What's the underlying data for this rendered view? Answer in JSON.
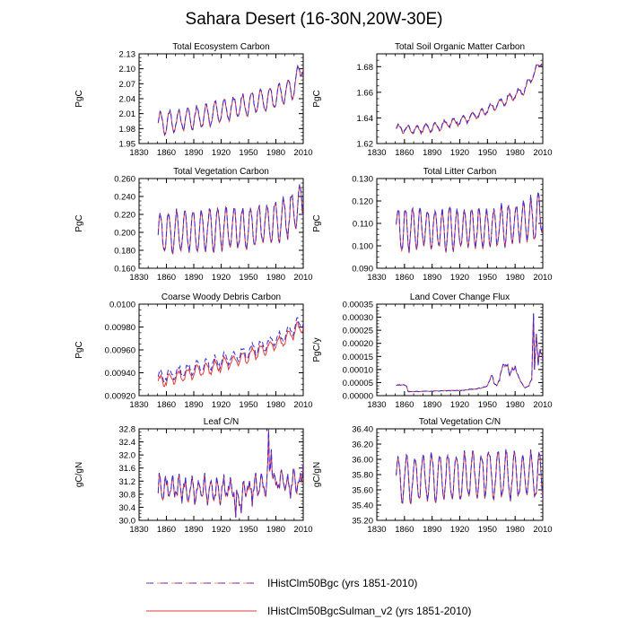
{
  "title": "Sahara Desert (16-30N,20W-30E)",
  "legend": [
    {
      "label": "IHistClm50Bgc (yrs 1851-2010)",
      "color": "#3b2bd6",
      "dash": "dashed"
    },
    {
      "label": "IHistClm50BgcSulman_v2 (yrs 1851-2010)",
      "color": "#e03a3a",
      "dash": "solid"
    }
  ],
  "colors": {
    "series1": "#3b2bd6",
    "series2": "#e03a3a"
  },
  "chart_data": [
    {
      "type": "line",
      "title": "Total Ecosystem Carbon",
      "ylabel": "PgC",
      "xlim": [
        1830,
        2010
      ],
      "xticks": [
        "1830",
        "1860",
        "1890",
        "1920",
        "1950",
        "1980",
        "2010"
      ],
      "ylim": [
        1.95,
        2.13
      ],
      "yticks": [
        "1.95",
        "1.98",
        "2.01",
        "2.04",
        "2.07",
        "2.10",
        "2.13"
      ],
      "pattern": {
        "trend": [
          [
            1851,
            1.99
          ],
          [
            1900,
            2.005
          ],
          [
            1950,
            2.03
          ],
          [
            1980,
            2.045
          ],
          [
            2000,
            2.065
          ],
          [
            2010,
            2.115
          ]
        ],
        "amp": 0.022,
        "period": 10,
        "noise": 0.004,
        "sep": 0.001
      },
      "series": [
        {
          "name": "IHistClm50Bgc (yrs 1851-2010)",
          "color": "#3b2bd6"
        },
        {
          "name": "IHistClm50BgcSulman_v2 (yrs 1851-2010)",
          "color": "#e03a3a"
        }
      ]
    },
    {
      "type": "line",
      "title": "Total Soil Organic Matter Carbon",
      "ylabel": "PgC",
      "xlim": [
        1830,
        2010
      ],
      "xticks": [
        "1830",
        "1860",
        "1890",
        "1920",
        "1950",
        "1980",
        "2010"
      ],
      "ylim": [
        1.62,
        1.69
      ],
      "yticks": [
        "1.62",
        "1.64",
        "1.66",
        "1.68"
      ],
      "pattern": {
        "trend": [
          [
            1851,
            1.632
          ],
          [
            1870,
            1.631
          ],
          [
            1900,
            1.634
          ],
          [
            1930,
            1.64
          ],
          [
            1960,
            1.65
          ],
          [
            1990,
            1.662
          ],
          [
            2010,
            1.686
          ]
        ],
        "amp": 0.003,
        "period": 10,
        "noise": 0.001,
        "sep": 0.0005
      },
      "series": [
        {
          "name": "IHistClm50Bgc (yrs 1851-2010)",
          "color": "#3b2bd6"
        },
        {
          "name": "IHistClm50BgcSulman_v2 (yrs 1851-2010)",
          "color": "#e03a3a"
        }
      ]
    },
    {
      "type": "line",
      "title": "Total Vegetation Carbon",
      "ylabel": "PgC",
      "xlim": [
        1830,
        2010
      ],
      "xticks": [
        "1830",
        "1860",
        "1890",
        "1920",
        "1950",
        "1980",
        "2010"
      ],
      "ylim": [
        0.16,
        0.26
      ],
      "yticks": [
        "0.160",
        "0.180",
        "0.200",
        "0.220",
        "0.240",
        "0.260"
      ],
      "pattern": {
        "trend": [
          [
            1851,
            0.2
          ],
          [
            1950,
            0.205
          ],
          [
            1990,
            0.215
          ],
          [
            2010,
            0.235
          ]
        ],
        "amp": 0.022,
        "period": 9,
        "noise": 0.004,
        "sep": 0.0008
      },
      "series": [
        {
          "name": "IHistClm50Bgc (yrs 1851-2010)",
          "color": "#3b2bd6"
        },
        {
          "name": "IHistClm50BgcSulman_v2 (yrs 1851-2010)",
          "color": "#e03a3a"
        }
      ]
    },
    {
      "type": "line",
      "title": "Total Litter Carbon",
      "ylabel": "PgC",
      "xlim": [
        1830,
        2010
      ],
      "xticks": [
        "1830",
        "1860",
        "1890",
        "1920",
        "1950",
        "1980",
        "2010"
      ],
      "ylim": [
        0.09,
        0.13
      ],
      "yticks": [
        "0.090",
        "0.100",
        "0.110",
        "0.120",
        "0.130"
      ],
      "pattern": {
        "trend": [
          [
            1851,
            0.108
          ],
          [
            1950,
            0.108
          ],
          [
            2000,
            0.112
          ],
          [
            2010,
            0.115
          ]
        ],
        "amp": 0.009,
        "period": 8,
        "noise": 0.002,
        "sep": 0.0004
      },
      "series": [
        {
          "name": "IHistClm50Bgc (yrs 1851-2010)",
          "color": "#3b2bd6"
        },
        {
          "name": "IHistClm50BgcSulman_v2 (yrs 1851-2010)",
          "color": "#e03a3a"
        }
      ]
    },
    {
      "type": "line",
      "title": "Coarse Woody Debris Carbon",
      "ylabel": "PgC",
      "xlim": [
        1830,
        2010
      ],
      "xticks": [
        "1830",
        "1860",
        "1890",
        "1920",
        "1950",
        "1980",
        "2010"
      ],
      "ylim": [
        0.0092,
        0.01
      ],
      "yticks": [
        "0.00920",
        "0.00940",
        "0.00960",
        "0.00980",
        "0.0100"
      ],
      "pattern": {
        "trend": [
          [
            1851,
            0.00935
          ],
          [
            1900,
            0.00945
          ],
          [
            1950,
            0.00958
          ],
          [
            1990,
            0.00972
          ],
          [
            2010,
            0.00985
          ]
        ],
        "amp": 5e-05,
        "period": 10,
        "noise": 2e-05,
        "sep": 3e-05
      },
      "series": [
        {
          "name": "IHistClm50Bgc (yrs 1851-2010)",
          "color": "#3b2bd6"
        },
        {
          "name": "IHistClm50BgcSulman_v2 (yrs 1851-2010)",
          "color": "#e03a3a"
        }
      ]
    },
    {
      "type": "line",
      "title": "Land Cover Change Flux",
      "ylabel": "PgC/y",
      "xlim": [
        1830,
        2010
      ],
      "xticks": [
        "1830",
        "1860",
        "1890",
        "1920",
        "1950",
        "1980",
        "2010"
      ],
      "ylim": [
        0,
        0.00035
      ],
      "yticks": [
        "0.00000",
        "0.00005",
        "0.00010",
        "0.00015",
        "0.00020",
        "0.00025",
        "0.00030",
        "0.00035"
      ],
      "pattern": {
        "points": [
          [
            1851,
            4e-05
          ],
          [
            1862,
            4e-05
          ],
          [
            1864,
            1.5e-05
          ],
          [
            1900,
            1.8e-05
          ],
          [
            1920,
            2e-05
          ],
          [
            1935,
            2.5e-05
          ],
          [
            1945,
            3e-05
          ],
          [
            1950,
            4e-05
          ],
          [
            1955,
            8e-05
          ],
          [
            1957,
            5e-05
          ],
          [
            1960,
            4e-05
          ],
          [
            1963,
            6e-05
          ],
          [
            1966,
            0.00011
          ],
          [
            1972,
            0.00012
          ],
          [
            1974,
            8e-05
          ],
          [
            1976,
            0.0001
          ],
          [
            1980,
            0.00011
          ],
          [
            1985,
            6e-05
          ],
          [
            1990,
            3e-05
          ],
          [
            1995,
            4e-05
          ],
          [
            1998,
            6e-05
          ],
          [
            2000,
            0.00033
          ],
          [
            2001,
            0.0001
          ],
          [
            2003,
            0.00023
          ],
          [
            2005,
            0.00012
          ],
          [
            2007,
            0.00018
          ],
          [
            2010,
            0.00014
          ]
        ]
      },
      "series": [
        {
          "name": "IHistClm50Bgc (yrs 1851-2010)",
          "color": "#3b2bd6"
        },
        {
          "name": "IHistClm50BgcSulman_v2 (yrs 1851-2010)",
          "color": "#e03a3a"
        }
      ]
    },
    {
      "type": "line",
      "title": "Leaf C/N",
      "ylabel": "gC/gN",
      "xlim": [
        1830,
        2010
      ],
      "xticks": [
        "1830",
        "1860",
        "1890",
        "1920",
        "1950",
        "1980",
        "2010"
      ],
      "ylim": [
        30.0,
        32.8
      ],
      "yticks": [
        "30.0",
        "30.4",
        "30.8",
        "31.2",
        "31.6",
        "32.0",
        "32.4",
        "32.8"
      ],
      "pattern": {
        "trend": [
          [
            1851,
            31.0
          ],
          [
            1950,
            30.9
          ],
          [
            1970,
            31.1
          ],
          [
            2010,
            31.2
          ]
        ],
        "amp": 0.3,
        "period": 7,
        "noise": 0.22,
        "sep": 0.02,
        "spikes": [
          [
            1936,
            -0.9
          ],
          [
            1942,
            -0.8
          ],
          [
            1972,
            1.3
          ],
          [
            1975,
            1.5
          ],
          [
            2010,
            1.0
          ]
        ]
      },
      "series": [
        {
          "name": "IHistClm50Bgc (yrs 1851-2010)",
          "color": "#3b2bd6"
        },
        {
          "name": "IHistClm50BgcSulman_v2 (yrs 1851-2010)",
          "color": "#e03a3a"
        }
      ]
    },
    {
      "type": "line",
      "title": "Total Vegetation C/N",
      "ylabel": "gC/gN",
      "xlim": [
        1830,
        2010
      ],
      "xticks": [
        "1830",
        "1860",
        "1890",
        "1920",
        "1950",
        "1980",
        "2010"
      ],
      "ylim": [
        35.2,
        36.4
      ],
      "yticks": [
        "35.20",
        "35.40",
        "35.60",
        "35.80",
        "36.00",
        "36.20",
        "36.40"
      ],
      "pattern": {
        "trend": [
          [
            1851,
            35.75
          ],
          [
            1950,
            35.8
          ],
          [
            2010,
            35.8
          ]
        ],
        "amp": 0.3,
        "period": 9,
        "noise": 0.06,
        "sep": 0.01,
        "spikes": [
          [
            1950,
            0.3
          ]
        ]
      },
      "series": [
        {
          "name": "IHistClm50Bgc (yrs 1851-2010)",
          "color": "#3b2bd6"
        },
        {
          "name": "IHistClm50BgcSulman_v2 (yrs 1851-2010)",
          "color": "#e03a3a"
        }
      ]
    }
  ]
}
